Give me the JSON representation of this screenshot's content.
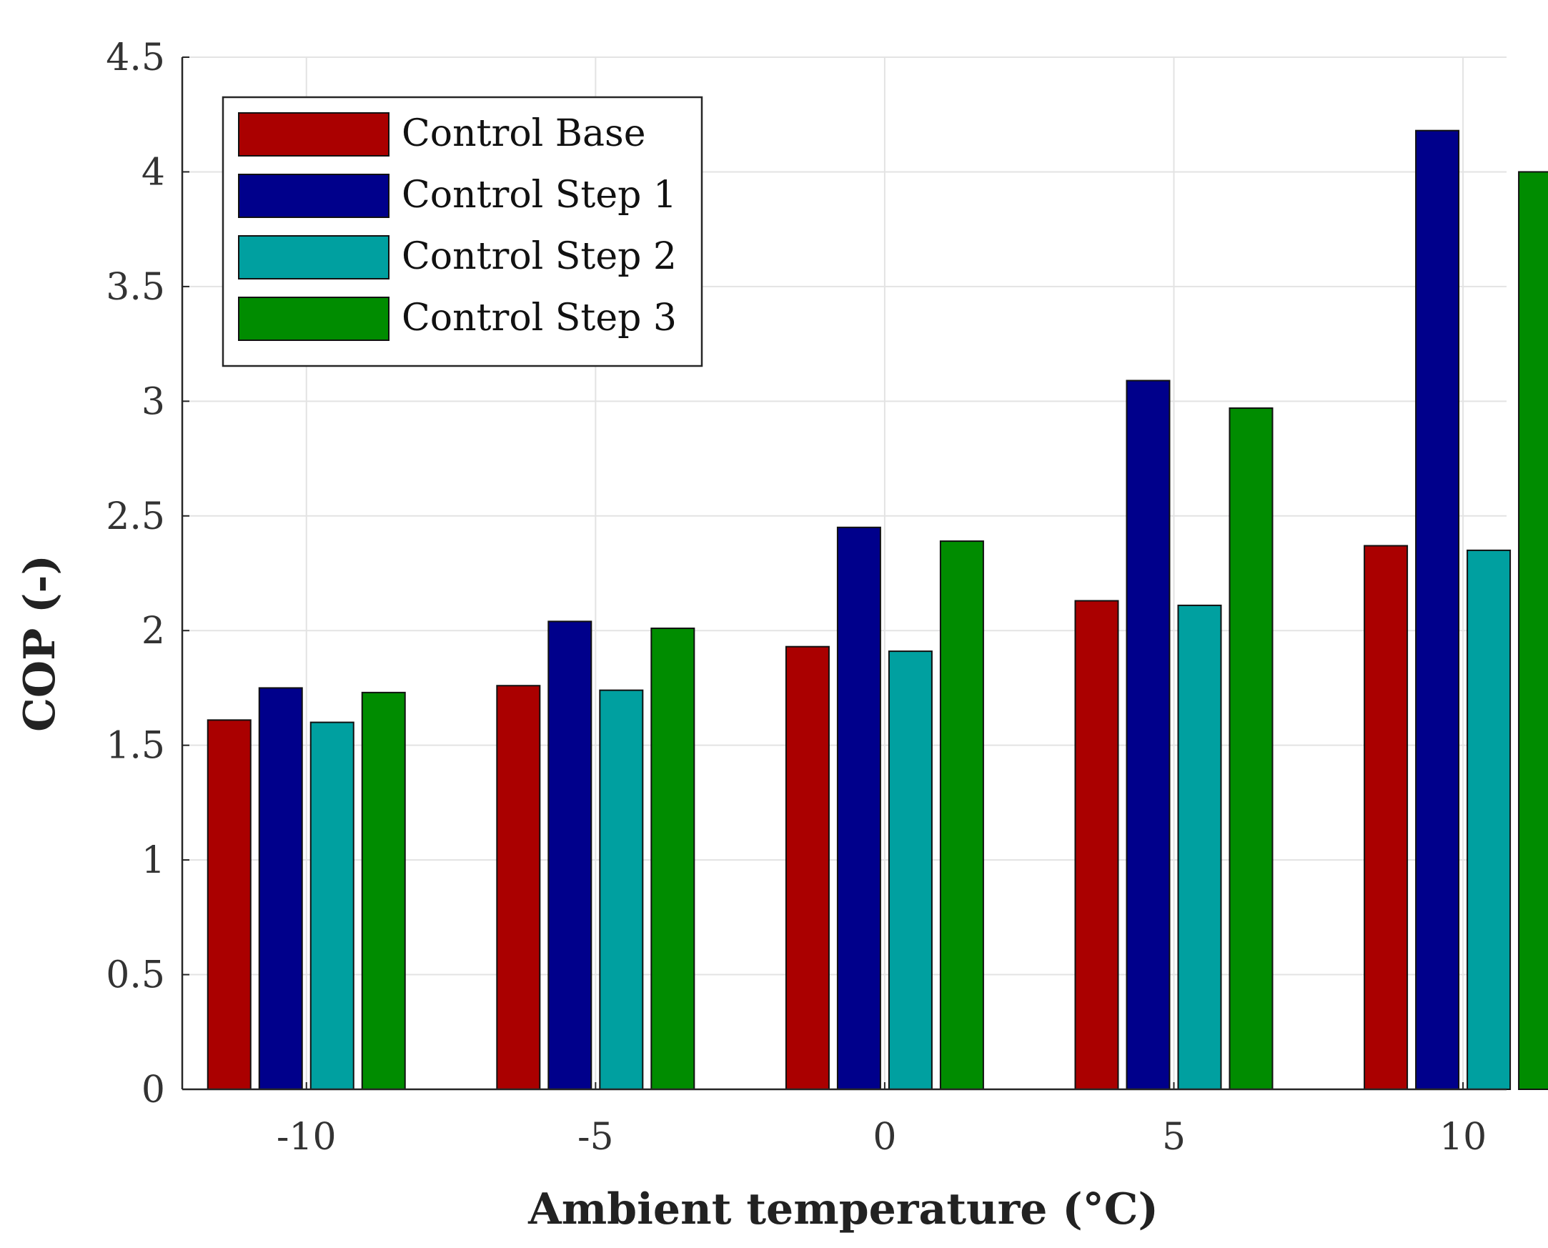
{
  "chart_data": {
    "type": "bar",
    "xlabel": "Ambient temperature (°C)",
    "ylabel": "COP (-)",
    "ylim": [
      0,
      4.5
    ],
    "yticks": [
      "0",
      "0.5",
      "1",
      "1.5",
      "2",
      "2.5",
      "3",
      "3.5",
      "4",
      "4.5"
    ],
    "categories": [
      "-10",
      "-5",
      "0",
      "5",
      "10"
    ],
    "grid": true,
    "legend_position": "top-left",
    "series": [
      {
        "name": "Control Base",
        "color": "#aa0000",
        "values": [
          1.61,
          1.76,
          1.93,
          2.13,
          2.37
        ]
      },
      {
        "name": "Control Step 1",
        "color": "#00008b",
        "values": [
          1.75,
          2.04,
          2.45,
          3.09,
          4.18
        ]
      },
      {
        "name": "Control Step 2",
        "color": "#00a0a0",
        "values": [
          1.6,
          1.74,
          1.91,
          2.11,
          2.35
        ]
      },
      {
        "name": "Control Step 3",
        "color": "#008c00",
        "values": [
          1.73,
          2.01,
          2.39,
          2.97,
          4.0
        ]
      }
    ]
  }
}
